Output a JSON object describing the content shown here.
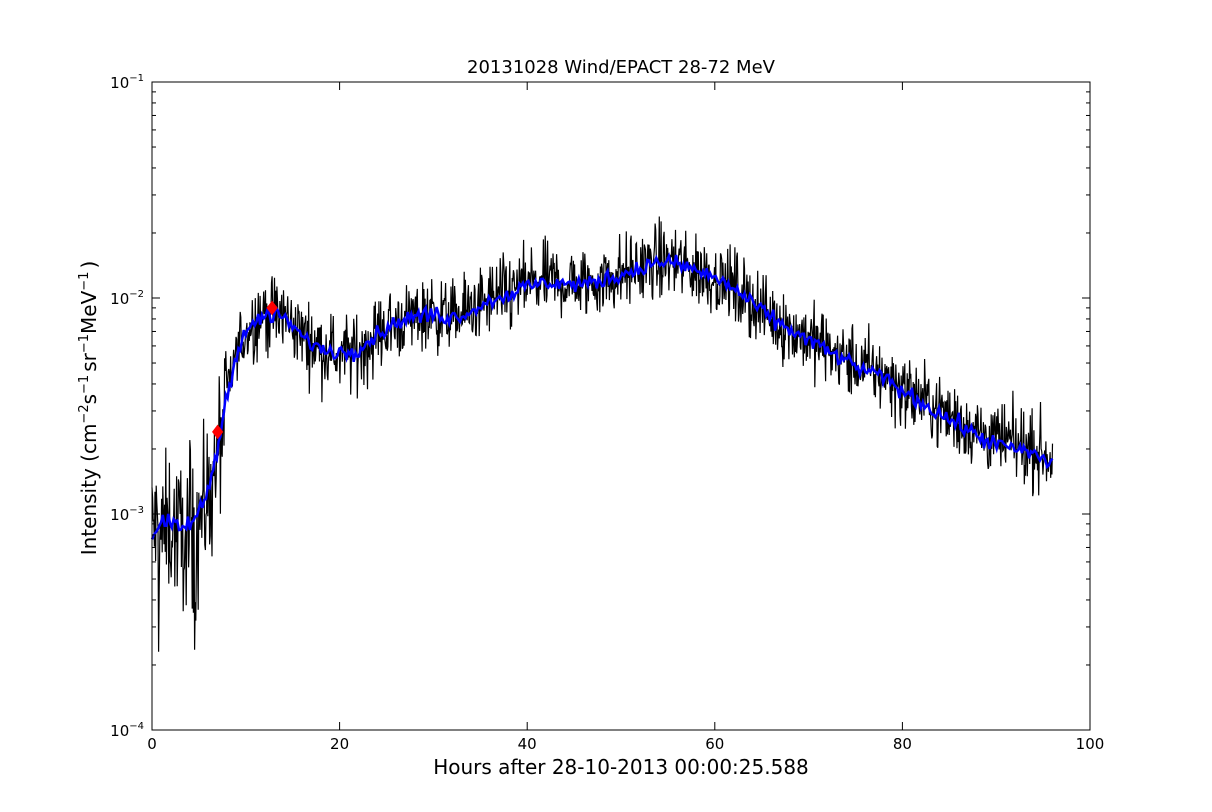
{
  "chart_data": {
    "type": "line",
    "title": "20131028 Wind/EPACT 28-72 MeV",
    "xlabel": "Hours after 28-10-2013 00:00:25.588",
    "ylabel_parts": {
      "prefix": "Intensity (cm",
      "exp1": "−2",
      "s": "s",
      "exp2": "−1",
      "sr": "sr",
      "exp3": "−1",
      "mev": "MeV",
      "exp4": "−1",
      "suffix": ")"
    },
    "xlim": [
      0,
      100
    ],
    "ylim": [
      0.0001,
      0.1
    ],
    "yscale": "log",
    "x_ticks": [
      0,
      20,
      40,
      60,
      80,
      100
    ],
    "x_tick_labels": [
      "0",
      "20",
      "40",
      "60",
      "80",
      "100"
    ],
    "y_ticks": [
      0.0001,
      0.001,
      0.01,
      0.1
    ],
    "y_tick_labels": [
      {
        "base": "10",
        "exp": "−4"
      },
      {
        "base": "10",
        "exp": "−3"
      },
      {
        "base": "10",
        "exp": "−2"
      },
      {
        "base": "10",
        "exp": "−1"
      }
    ],
    "grid": false,
    "series": [
      {
        "role": "raw",
        "color": "#000000",
        "x": [
          0,
          1,
          2,
          3,
          4,
          5,
          6,
          7,
          8,
          9,
          10,
          12,
          14,
          16,
          18,
          20,
          22,
          24,
          26,
          28,
          30,
          32,
          34,
          36,
          38,
          40,
          42,
          44,
          46,
          48,
          50,
          52,
          54,
          56,
          58,
          60,
          62,
          64,
          66,
          68,
          70,
          72,
          74,
          76,
          78,
          80,
          82,
          84,
          86,
          88,
          90,
          92,
          94,
          96
        ],
        "y": [
          0.0009,
          0.0008,
          0.0009,
          0.0008,
          0.0009,
          0.001,
          0.0012,
          0.0018,
          0.0035,
          0.0055,
          0.007,
          0.0085,
          0.0083,
          0.0068,
          0.0058,
          0.0055,
          0.0056,
          0.0068,
          0.0076,
          0.0082,
          0.0085,
          0.0082,
          0.0088,
          0.0098,
          0.0105,
          0.0115,
          0.012,
          0.0118,
          0.0115,
          0.0122,
          0.013,
          0.0138,
          0.0148,
          0.0145,
          0.0135,
          0.0125,
          0.0112,
          0.0095,
          0.0082,
          0.0072,
          0.0065,
          0.0058,
          0.0052,
          0.0047,
          0.0044,
          0.0038,
          0.0034,
          0.003,
          0.0027,
          0.0024,
          0.0022,
          0.0021,
          0.002,
          0.0018
        ]
      },
      {
        "role": "smoothed",
        "color": "#0000ff",
        "x": [
          0,
          1,
          2,
          3,
          4,
          5,
          6,
          7,
          8,
          9,
          10,
          12,
          14,
          16,
          18,
          20,
          22,
          24,
          26,
          28,
          30,
          32,
          34,
          36,
          38,
          40,
          42,
          44,
          46,
          48,
          50,
          52,
          54,
          56,
          58,
          60,
          62,
          64,
          66,
          68,
          70,
          72,
          74,
          76,
          78,
          80,
          82,
          84,
          86,
          88,
          90,
          92,
          94,
          96
        ],
        "y": [
          0.0008,
          0.0009,
          0.0009,
          0.00085,
          0.0009,
          0.001,
          0.0013,
          0.002,
          0.0036,
          0.0055,
          0.007,
          0.0083,
          0.0082,
          0.0066,
          0.0058,
          0.0056,
          0.0058,
          0.0068,
          0.0077,
          0.0082,
          0.0084,
          0.0081,
          0.0087,
          0.0097,
          0.0104,
          0.0113,
          0.0118,
          0.0117,
          0.0115,
          0.0121,
          0.0128,
          0.0137,
          0.0147,
          0.0144,
          0.0134,
          0.0124,
          0.0111,
          0.0094,
          0.0081,
          0.0071,
          0.0064,
          0.0057,
          0.0051,
          0.0046,
          0.0043,
          0.0037,
          0.0033,
          0.0029,
          0.0026,
          0.0023,
          0.0021,
          0.002,
          0.0019,
          0.0017
        ]
      }
    ],
    "markers": [
      {
        "x": 7.0,
        "y": 0.0024,
        "shape": "diamond",
        "color": "#ff0000"
      },
      {
        "x": 12.8,
        "y": 0.009,
        "shape": "diamond",
        "color": "#ff0000"
      }
    ]
  }
}
